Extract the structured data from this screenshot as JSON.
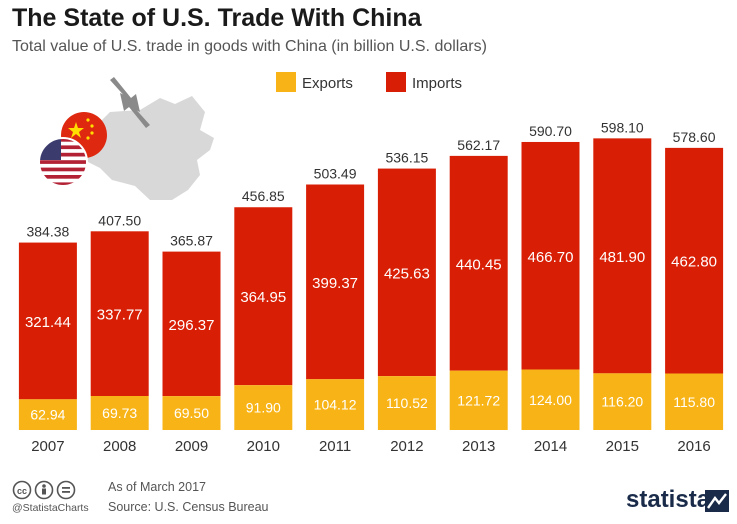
{
  "header": {
    "title": "The State of U.S. Trade With China",
    "subtitle": "Total value of U.S. trade in goods with China (in billion U.S. dollars)"
  },
  "colors": {
    "exports": "#f8b416",
    "imports": "#d81e05",
    "text": "#333333"
  },
  "chart_data": {
    "type": "bar",
    "stacked": true,
    "categories": [
      "2007",
      "2008",
      "2009",
      "2010",
      "2011",
      "2012",
      "2013",
      "2014",
      "2015",
      "2016"
    ],
    "series": [
      {
        "name": "Exports",
        "values": [
          62.94,
          69.73,
          69.5,
          91.9,
          104.12,
          110.52,
          121.72,
          124.0,
          116.2,
          115.8
        ]
      },
      {
        "name": "Imports",
        "values": [
          321.44,
          337.77,
          296.37,
          364.95,
          399.37,
          425.63,
          440.45,
          466.7,
          481.9,
          462.8
        ]
      }
    ],
    "totals": [
      "384.38",
      "407.50",
      "365.87",
      "456.85",
      "503.49",
      "536.15",
      "562.17",
      "590.70",
      "598.10",
      "578.60"
    ],
    "export_labels": [
      "62.94",
      "69.73",
      "69.50",
      "91.90",
      "104.12",
      "110.52",
      "121.72",
      "124.00",
      "116.20",
      "115.80"
    ],
    "import_labels": [
      "321.44",
      "337.77",
      "296.37",
      "364.95",
      "399.37",
      "425.63",
      "440.45",
      "466.70",
      "481.90",
      "462.80"
    ],
    "legend": {
      "placement": "top-center",
      "items": [
        "Exports",
        "Imports"
      ]
    },
    "ylim": [
      0,
      600
    ],
    "grid": false
  },
  "footer": {
    "as_of": "As of March 2017",
    "source": "Source: U.S. Census Bureau",
    "handle": "@StatistaCharts",
    "brand": "statista"
  },
  "icons": [
    "cc-icon",
    "attribution-icon",
    "no-derivatives-icon",
    "china-map-icon",
    "usa-flag-icon",
    "china-flag-icon",
    "trade-arrows-icon",
    "statista-logo-icon"
  ]
}
